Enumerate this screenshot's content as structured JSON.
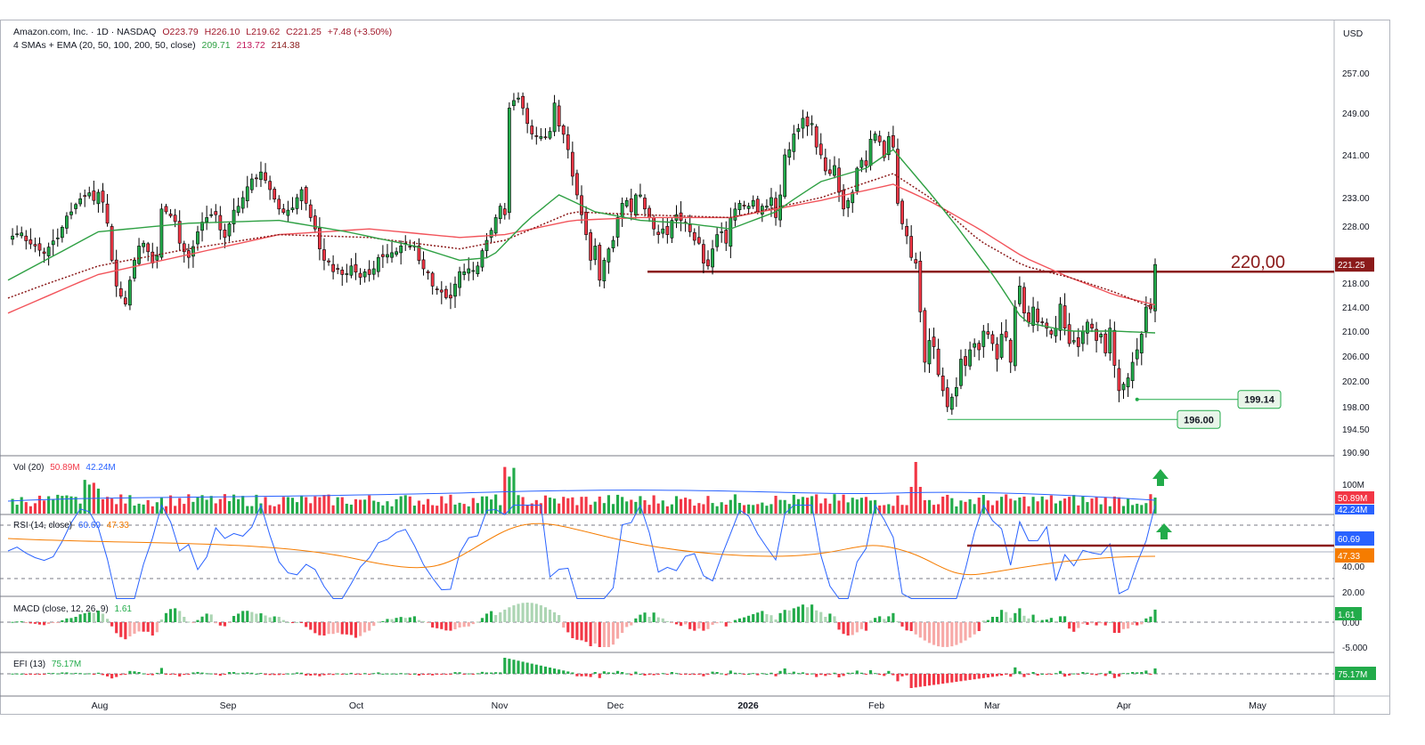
{
  "header": {
    "title": "Amazon.com, Inc. · 1D · NASDAQ",
    "open": "O223.79",
    "high": "H226.10",
    "low": "L219.62",
    "close": "C221.25",
    "change": "+7.48 (+3.50%)",
    "ma_label": "4 SMAs + EMA (20, 50, 100, 200, 50, close)",
    "ma_values": [
      "209.71",
      "213.72",
      "214.38"
    ]
  },
  "currency": "USD",
  "annotations": {
    "level_label": "220,00",
    "low1_label": "199.14",
    "low2_label": "196.00"
  },
  "panes": {
    "vol": {
      "label": "Vol (20)",
      "v1": "50.89M",
      "v2": "42.24M",
      "tag1": "50.89M",
      "tag2": "42.24M",
      "axis": "100M"
    },
    "rsi": {
      "label": "RSI (14, close)",
      "v1": "60.69",
      "v2": "47.33",
      "tag1": "60.69",
      "tag2": "47.33",
      "ticks": [
        "40.00",
        "20.00"
      ]
    },
    "macd": {
      "label": "MACD (close, 12, 26, 9)",
      "v1": "1.61",
      "tag": "1.61",
      "ticks": [
        "0.00",
        "-5.000"
      ]
    },
    "efi": {
      "label": "EFI (13)",
      "v1": "75.17M",
      "tag": "75.17M"
    }
  },
  "colors": {
    "up": "#089981",
    "up_fill": "#22ab4a",
    "down": "#f23645",
    "sma_green": "#2ea043",
    "sma_red": "#f2545b",
    "ema_dotted": "#8b1a1a",
    "level": "#8b1a1a",
    "rsi_line": "#2962ff",
    "rsi_ma": "#f57c00"
  },
  "chart_data": {
    "type": "candlestick",
    "ticker": "Amazon.com, Inc.",
    "interval": "1D",
    "exchange": "NASDAQ",
    "ylim": [
      190.9,
      260.5
    ],
    "yticks": [
      257.0,
      249.0,
      241.0,
      233.0,
      228.0,
      218.0,
      214.0,
      210.0,
      206.0,
      202.0,
      198.0,
      194.5,
      190.9
    ],
    "x_ticks": [
      "Aug",
      "Sep",
      "Oct",
      "Nov",
      "Dec",
      "2026",
      "Feb",
      "Mar",
      "Apr",
      "May"
    ],
    "close_path": [
      [
        0,
        226.0
      ],
      [
        3,
        226.8
      ],
      [
        6,
        224.5
      ],
      [
        8,
        223.2
      ],
      [
        10,
        225.4
      ],
      [
        12,
        227.8
      ],
      [
        14,
        230.5
      ],
      [
        16,
        232.8
      ],
      [
        18,
        233.9
      ],
      [
        19,
        232.5
      ],
      [
        20,
        234.0
      ],
      [
        21,
        232.2
      ],
      [
        22,
        228.5
      ],
      [
        23,
        222.0
      ],
      [
        24,
        217.5
      ],
      [
        25,
        215.8
      ],
      [
        26,
        214.5
      ],
      [
        27,
        218.5
      ],
      [
        28,
        222.0
      ],
      [
        29,
        224.5
      ],
      [
        30,
        225.0
      ],
      [
        31,
        223.5
      ],
      [
        32,
        221.5
      ],
      [
        33,
        222.8
      ],
      [
        34,
        231.0
      ],
      [
        35,
        230.5
      ],
      [
        36,
        229.8
      ],
      [
        37,
        228.8
      ],
      [
        38,
        225.0
      ],
      [
        39,
        223.5
      ],
      [
        40,
        222.5
      ],
      [
        42,
        227.0
      ],
      [
        44,
        229.5
      ],
      [
        46,
        230.0
      ],
      [
        48,
        226.0
      ],
      [
        50,
        230.8
      ],
      [
        52,
        233.0
      ],
      [
        54,
        236.5
      ],
      [
        56,
        237.8
      ],
      [
        58,
        234.5
      ],
      [
        60,
        231.0
      ],
      [
        62,
        230.8
      ],
      [
        64,
        233.0
      ],
      [
        65,
        234.5
      ],
      [
        66,
        232.0
      ],
      [
        67,
        229.5
      ],
      [
        68,
        227.5
      ],
      [
        69,
        224.0
      ],
      [
        70,
        222.0
      ],
      [
        72,
        220.0
      ],
      [
        74,
        219.5
      ],
      [
        76,
        221.0
      ],
      [
        78,
        219.0
      ],
      [
        80,
        219.5
      ],
      [
        82,
        222.5
      ],
      [
        84,
        223.0
      ],
      [
        86,
        223.5
      ],
      [
        88,
        225.0
      ],
      [
        90,
        224.5
      ],
      [
        92,
        220.5
      ],
      [
        94,
        217.5
      ],
      [
        96,
        216.5
      ],
      [
        98,
        215.5
      ],
      [
        100,
        220.0
      ],
      [
        102,
        220.5
      ],
      [
        104,
        221.0
      ],
      [
        106,
        225.5
      ],
      [
        108,
        229.5
      ],
      [
        109,
        231.5
      ],
      [
        110,
        230.0
      ],
      [
        111,
        250.0
      ],
      [
        112,
        251.5
      ],
      [
        113,
        252.0
      ],
      [
        114,
        250.0
      ],
      [
        115,
        247.0
      ],
      [
        116,
        245.0
      ],
      [
        118,
        244.5
      ],
      [
        120,
        245.5
      ],
      [
        121,
        251.0
      ],
      [
        122,
        246.5
      ],
      [
        124,
        242.0
      ],
      [
        125,
        237.0
      ],
      [
        126,
        233.5
      ],
      [
        127,
        230.0
      ],
      [
        128,
        226.5
      ],
      [
        129,
        222.0
      ],
      [
        130,
        224.5
      ],
      [
        131,
        218.5
      ],
      [
        132,
        222.0
      ],
      [
        133,
        224.0
      ],
      [
        134,
        225.5
      ],
      [
        135,
        229.5
      ],
      [
        136,
        232.0
      ],
      [
        137,
        232.5
      ],
      [
        138,
        230.5
      ],
      [
        139,
        233.5
      ],
      [
        140,
        233.5
      ],
      [
        141,
        231.0
      ],
      [
        142,
        229.5
      ],
      [
        143,
        227.5
      ],
      [
        144,
        226.5
      ],
      [
        145,
        227.5
      ],
      [
        146,
        226.5
      ],
      [
        147,
        229.0
      ],
      [
        148,
        230.0
      ],
      [
        149,
        229.0
      ],
      [
        150,
        228.5
      ],
      [
        151,
        227.0
      ],
      [
        152,
        225.5
      ],
      [
        153,
        225.0
      ],
      [
        154,
        221.5
      ],
      [
        155,
        221.0
      ],
      [
        156,
        224.0
      ],
      [
        157,
        226.5
      ],
      [
        158,
        227.0
      ],
      [
        159,
        225.0
      ],
      [
        160,
        229.5
      ],
      [
        161,
        231.0
      ],
      [
        162,
        232.0
      ],
      [
        163,
        231.5
      ],
      [
        164,
        231.5
      ],
      [
        165,
        232.5
      ],
      [
        166,
        230.5
      ],
      [
        167,
        231.5
      ],
      [
        168,
        231.5
      ],
      [
        169,
        233.0
      ],
      [
        170,
        229.5
      ],
      [
        171,
        233.5
      ],
      [
        172,
        241.0
      ],
      [
        173,
        242.0
      ],
      [
        174,
        245.0
      ],
      [
        175,
        246.0
      ],
      [
        176,
        248.0
      ],
      [
        177,
        246.5
      ],
      [
        178,
        247.0
      ],
      [
        179,
        242.5
      ],
      [
        180,
        241.0
      ],
      [
        181,
        238.0
      ],
      [
        182,
        237.5
      ],
      [
        183,
        239.0
      ],
      [
        184,
        234.0
      ],
      [
        185,
        231.0
      ],
      [
        186,
        232.5
      ],
      [
        187,
        234.0
      ],
      [
        188,
        238.5
      ],
      [
        189,
        240.0
      ],
      [
        190,
        239.0
      ],
      [
        191,
        244.0
      ],
      [
        192,
        245.0
      ],
      [
        193,
        243.5
      ],
      [
        194,
        240.5
      ],
      [
        195,
        244.5
      ],
      [
        196,
        242.5
      ],
      [
        197,
        232.0
      ],
      [
        200,
        222.5
      ],
      [
        201,
        221.5
      ],
      [
        203,
        205.0
      ],
      [
        204,
        208.5
      ],
      [
        205,
        207.5
      ],
      [
        206,
        203.0
      ],
      [
        207,
        200.5
      ],
      [
        208,
        198.0
      ],
      [
        209,
        199.5
      ],
      [
        210,
        201.0
      ],
      [
        211,
        205.5
      ],
      [
        212,
        204.5
      ],
      [
        213,
        207.0
      ],
      [
        214,
        208.0
      ],
      [
        215,
        207.0
      ],
      [
        216,
        210.0
      ],
      [
        217,
        209.5
      ],
      [
        218,
        208.0
      ],
      [
        219,
        205.5
      ],
      [
        220,
        209.5
      ],
      [
        221,
        209.0
      ],
      [
        222,
        205.0
      ],
      [
        223,
        214.0
      ],
      [
        224,
        217.5
      ],
      [
        225,
        213.0
      ],
      [
        226,
        211.5
      ],
      [
        227,
        214.0
      ],
      [
        228,
        211.5
      ],
      [
        229,
        211.5
      ],
      [
        230,
        210.5
      ],
      [
        231,
        209.5
      ],
      [
        232,
        210.5
      ],
      [
        233,
        214.5
      ],
      [
        234,
        210.5
      ],
      [
        235,
        208.0
      ],
      [
        236,
        208.5
      ],
      [
        237,
        207.5
      ],
      [
        238,
        210.0
      ],
      [
        239,
        211.5
      ],
      [
        240,
        210.5
      ],
      [
        241,
        208.5
      ],
      [
        242,
        209.5
      ],
      [
        243,
        206.5
      ],
      [
        244,
        210.5
      ],
      [
        245,
        204.5
      ],
      [
        246,
        200.5
      ],
      [
        247,
        201.5
      ],
      [
        248,
        202.5
      ],
      [
        249,
        205.0
      ],
      [
        250,
        207.0
      ],
      [
        251,
        209.5
      ],
      [
        252,
        214.0
      ],
      [
        253,
        213.7
      ],
      [
        254,
        221.25
      ]
    ],
    "sma_20_path": [
      [
        0,
        218.5
      ],
      [
        20,
        227.0
      ],
      [
        40,
        228.5
      ],
      [
        60,
        229.0
      ],
      [
        75,
        227.0
      ],
      [
        90,
        224.5
      ],
      [
        100,
        222.0
      ],
      [
        107,
        222.5
      ],
      [
        115,
        229.0
      ],
      [
        122,
        233.5
      ],
      [
        130,
        230.5
      ],
      [
        140,
        229.0
      ],
      [
        150,
        228.5
      ],
      [
        160,
        227.5
      ],
      [
        170,
        230.5
      ],
      [
        180,
        236.0
      ],
      [
        190,
        238.5
      ],
      [
        196,
        242.0
      ],
      [
        202,
        236.0
      ],
      [
        210,
        228.0
      ],
      [
        218,
        219.5
      ],
      [
        225,
        211.5
      ],
      [
        235,
        210.0
      ],
      [
        245,
        210.0
      ],
      [
        254,
        209.71
      ]
    ],
    "sma_50_path": [
      [
        0,
        213.0
      ],
      [
        20,
        219.5
      ],
      [
        40,
        223.0
      ],
      [
        60,
        226.5
      ],
      [
        80,
        227.5
      ],
      [
        100,
        226.0
      ],
      [
        110,
        226.5
      ],
      [
        125,
        229.0
      ],
      [
        140,
        229.5
      ],
      [
        160,
        229.5
      ],
      [
        180,
        232.5
      ],
      [
        196,
        235.5
      ],
      [
        205,
        232.0
      ],
      [
        215,
        227.5
      ],
      [
        225,
        222.5
      ],
      [
        235,
        219.0
      ],
      [
        245,
        216.0
      ],
      [
        254,
        214.38
      ]
    ],
    "ema_50_path": [
      [
        0,
        215.5
      ],
      [
        20,
        221.0
      ],
      [
        40,
        224.0
      ],
      [
        60,
        226.5
      ],
      [
        80,
        226.0
      ],
      [
        100,
        224.0
      ],
      [
        110,
        225.5
      ],
      [
        125,
        230.5
      ],
      [
        140,
        230.0
      ],
      [
        160,
        229.5
      ],
      [
        180,
        233.0
      ],
      [
        196,
        237.5
      ],
      [
        205,
        232.5
      ],
      [
        215,
        225.5
      ],
      [
        225,
        221.0
      ],
      [
        235,
        219.0
      ],
      [
        245,
        216.5
      ],
      [
        254,
        213.72
      ]
    ],
    "horizontal_level": 220.0,
    "swing_lows": [
      {
        "x": 250,
        "y": 199.14
      },
      {
        "x": 208,
        "y": 196.0
      }
    ],
    "last_price": 221.25,
    "volume_last": "50.89M",
    "volume_ma": "42.24M",
    "rsi_last": 60.69,
    "rsi_ma_last": 47.33,
    "macd_last": 1.61,
    "efi_last": "75.17M"
  }
}
